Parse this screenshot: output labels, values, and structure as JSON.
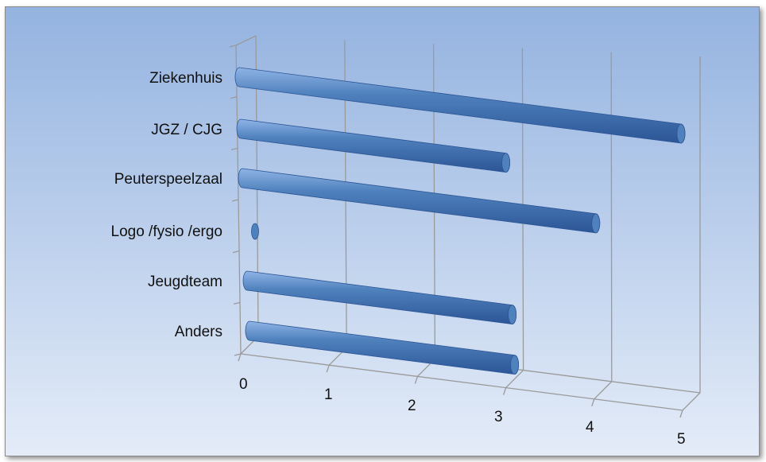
{
  "chart_data": {
    "type": "bar",
    "orientation": "horizontal",
    "style": "3d-cylinder",
    "title": "",
    "xlabel": "",
    "ylabel": "",
    "categories": [
      "Ziekenhuis",
      "JGZ / CJG",
      "Peuterspeelzaal",
      "Logo /fysio /ergo",
      "Jeugdteam",
      "Anders"
    ],
    "values": [
      5,
      3,
      4,
      0,
      3,
      3
    ],
    "xlim": [
      0,
      5
    ],
    "xticks": [
      "0",
      "1",
      "2",
      "3",
      "4",
      "5"
    ],
    "grid": true,
    "legend": "none",
    "colors": {
      "bar": "#4f81bd",
      "bar_dark": "#2c5596",
      "bar_light": "#8fb4e6",
      "background_top": "#94b3e0",
      "background_bottom": "#e4ecf8",
      "gridline": "#9a9a9a"
    }
  }
}
